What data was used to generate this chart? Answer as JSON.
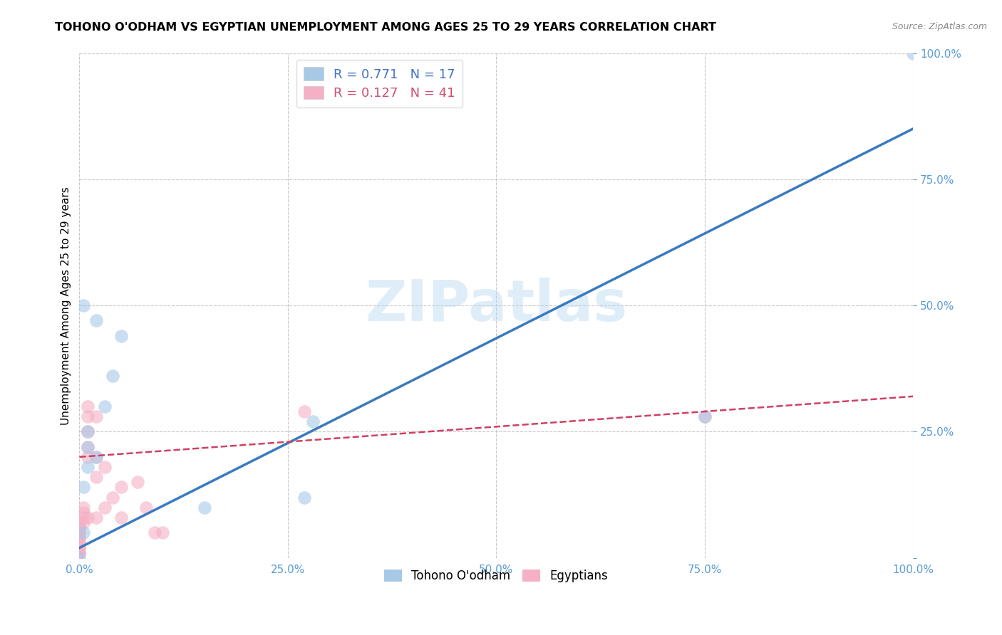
{
  "title": "TOHONO O'ODHAM VS EGYPTIAN UNEMPLOYMENT AMONG AGES 25 TO 29 YEARS CORRELATION CHART",
  "source": "Source: ZipAtlas.com",
  "ylabel": "Unemployment Among Ages 25 to 29 years",
  "xlim": [
    0,
    1.0
  ],
  "ylim": [
    0,
    1.0
  ],
  "xticks": [
    0.0,
    0.25,
    0.5,
    0.75,
    1.0
  ],
  "yticks": [
    0.0,
    0.25,
    0.5,
    0.75,
    1.0
  ],
  "xticklabels": [
    "0.0%",
    "25.0%",
    "50.0%",
    "75.0%",
    "100.0%"
  ],
  "yticklabels": [
    "",
    "25.0%",
    "50.0%",
    "75.0%",
    "100.0%"
  ],
  "background_color": "#ffffff",
  "grid_color": "#c8c8c8",
  "watermark": "ZIPatlas",
  "legend_R1": "R = 0.771",
  "legend_N1": "N = 17",
  "legend_R2": "R = 0.127",
  "legend_N2": "N = 41",
  "tohono_color": "#a8c8e8",
  "egyptian_color": "#f5b0c5",
  "tohono_line_color": "#3a7abf",
  "egyptian_line_color": "#d04060",
  "tohono_x": [
    0.02,
    0.01,
    0.03,
    0.01,
    0.005,
    0.005,
    0.0,
    0.01,
    0.02,
    0.04,
    0.27,
    0.28,
    0.75,
    1.0,
    0.005,
    0.05,
    0.15
  ],
  "tohono_y": [
    0.2,
    0.22,
    0.3,
    0.18,
    0.14,
    0.05,
    0.0,
    0.25,
    0.47,
    0.36,
    0.12,
    0.27,
    0.28,
    1.0,
    0.5,
    0.44,
    0.1
  ],
  "egyptian_x": [
    0.0,
    0.0,
    0.0,
    0.0,
    0.0,
    0.0,
    0.0,
    0.0,
    0.0,
    0.0,
    0.0,
    0.0,
    0.0,
    0.0,
    0.0,
    0.0,
    0.01,
    0.01,
    0.01,
    0.01,
    0.02,
    0.02,
    0.02,
    0.02,
    0.03,
    0.03,
    0.04,
    0.05,
    0.05,
    0.07,
    0.08,
    0.09,
    0.1,
    0.27,
    0.005,
    0.005,
    0.005,
    0.005,
    0.01,
    0.01,
    0.75
  ],
  "egyptian_y": [
    0.01,
    0.01,
    0.01,
    0.02,
    0.02,
    0.03,
    0.03,
    0.04,
    0.04,
    0.05,
    0.05,
    0.05,
    0.06,
    0.06,
    0.06,
    0.07,
    0.2,
    0.22,
    0.25,
    0.28,
    0.08,
    0.16,
    0.2,
    0.28,
    0.1,
    0.18,
    0.12,
    0.08,
    0.14,
    0.15,
    0.1,
    0.05,
    0.05,
    0.29,
    0.07,
    0.08,
    0.09,
    0.1,
    0.3,
    0.08,
    0.28
  ],
  "tohono_reg_intercept": 0.02,
  "tohono_reg_slope": 0.83,
  "egyptian_reg_intercept": 0.2,
  "egyptian_reg_slope": 0.12,
  "marker_size": 180,
  "legend_fontsize": 13,
  "title_fontsize": 11.5,
  "axis_tick_fontsize": 11,
  "tick_color": "#5b9bd5",
  "legend_text_blue": "#4472c4",
  "legend_text_pink": "#d05070"
}
